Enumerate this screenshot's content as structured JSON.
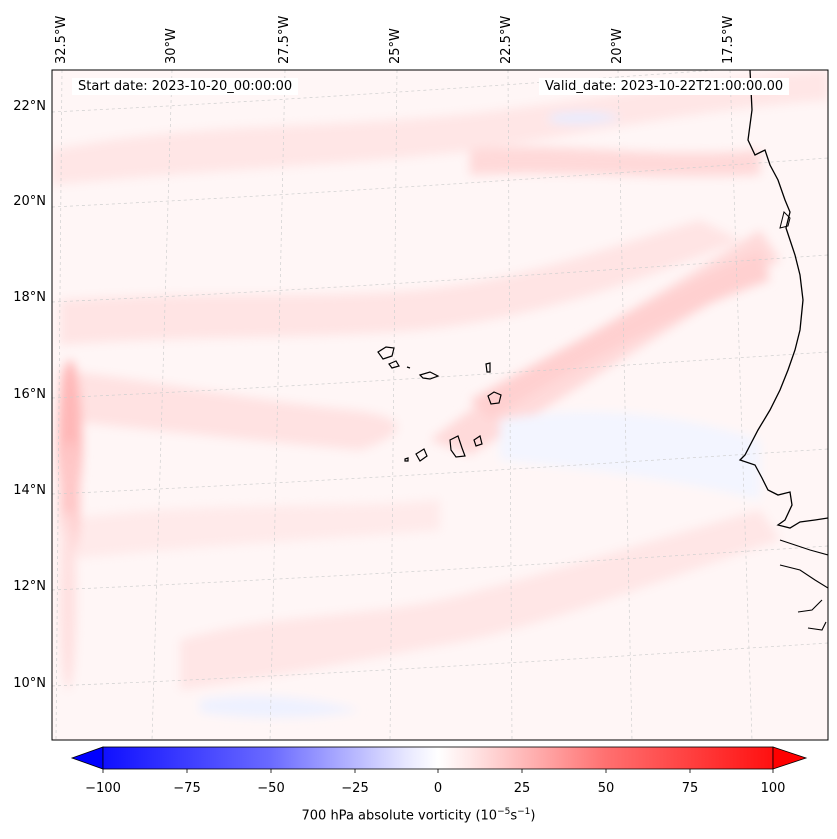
{
  "map": {
    "start_date": "Start date: 2023-10-20_00:00:00",
    "valid_date": "Valid_date: 2023-10-22T21:00:00.00",
    "lon_labels": [
      "32.5°W",
      "30°W",
      "27.5°W",
      "25°W",
      "22.5°W",
      "20°W",
      "17.5°W"
    ],
    "lat_labels": [
      "22°N",
      "20°N",
      "18°N",
      "16°N",
      "14°N",
      "12°N",
      "10°N"
    ],
    "gridlines": true,
    "projection": "Lambert conformal",
    "field": "700 hPa absolute vorticity"
  },
  "colorbar": {
    "ticks": [
      "−100",
      "−75",
      "−50",
      "−25",
      "0",
      "25",
      "50",
      "75",
      "100"
    ],
    "label_prefix": "700 hPa absolute vorticity (10",
    "label_exp1": "−5",
    "label_mid": "s",
    "label_exp2": "−1",
    "label_suffix": ")",
    "range": [
      -100,
      100
    ],
    "cmap": "bwr",
    "extend": "both",
    "colors": {
      "min": "#0000ff",
      "mid": "#ffffff",
      "max": "#ff0000"
    }
  }
}
